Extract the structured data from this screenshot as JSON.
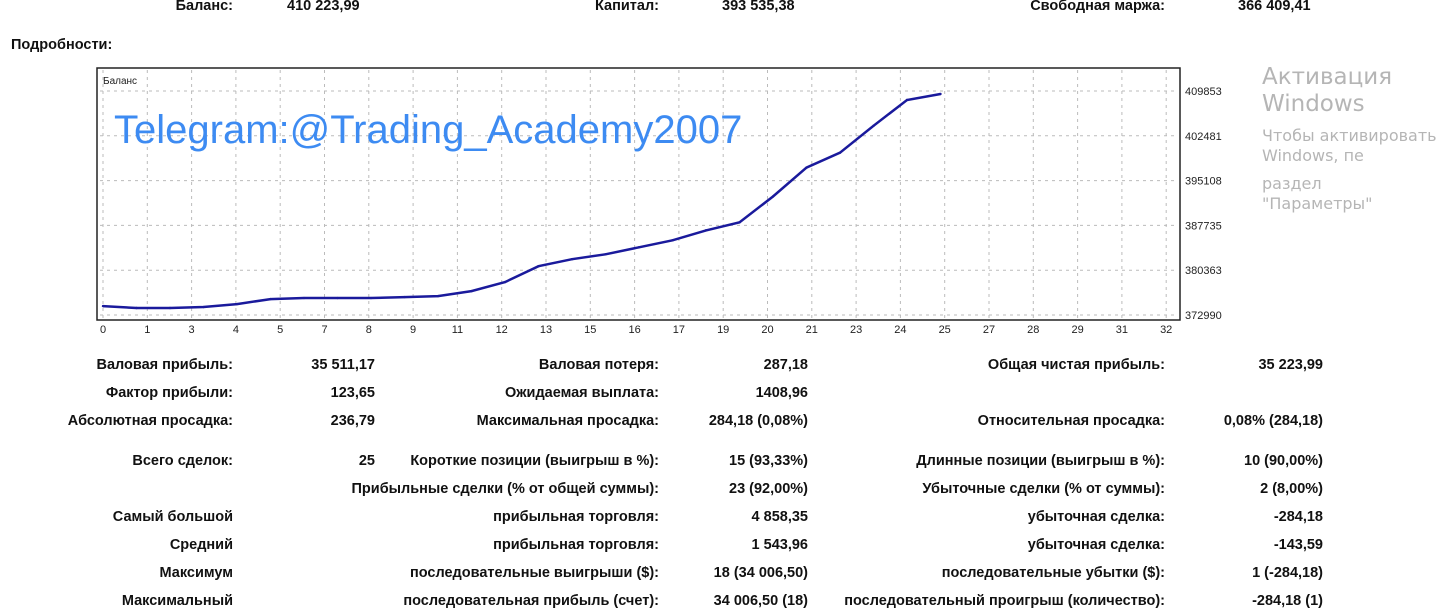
{
  "summary": [
    {
      "label": "Баланс:",
      "value": "410 223,99"
    },
    {
      "label": "Капитал:",
      "value": "393 535,38"
    },
    {
      "label": "Свободная маржа:",
      "value": "366 409,41"
    }
  ],
  "details_title": "Подробности:",
  "watermark_telegram": "Telegram:@Trading_Academy2007",
  "windows_activation": {
    "line1": "Активация Windows",
    "line2": "Чтобы активировать Windows, пе",
    "line3": "раздел \"Параметры\""
  },
  "chart_data": {
    "type": "line",
    "title": "Баланс",
    "x_tick_labels": [
      "0",
      "1",
      "3",
      "4",
      "5",
      "7",
      "8",
      "9",
      "11",
      "12",
      "13",
      "15",
      "16",
      "17",
      "19",
      "20",
      "21",
      "23",
      "24",
      "25",
      "27",
      "28",
      "29",
      "31",
      "32"
    ],
    "y_tick_labels": [
      "409853",
      "402481",
      "395108",
      "387735",
      "380363",
      "372990"
    ],
    "ylim": [
      372990,
      409853
    ],
    "xlim": [
      0,
      32
    ],
    "grid": true,
    "line_color": "#1a1a9c",
    "series": [
      {
        "x": [
          0,
          1,
          2,
          3,
          4,
          5,
          6,
          7,
          8,
          9,
          10,
          11,
          12,
          13,
          14,
          15,
          16,
          17,
          18,
          19,
          20,
          21,
          22,
          23,
          24,
          25
        ],
        "values": [
          374460,
          374140,
          374140,
          374300,
          374790,
          375610,
          375780,
          375780,
          375780,
          375940,
          376100,
          376920,
          378400,
          381020,
          382170,
          382980,
          384130,
          385280,
          386920,
          388230,
          392490,
          397240,
          399700,
          404120,
          408380,
          409360
        ]
      }
    ]
  },
  "stats": [
    {
      "l1": "Валовая прибыль:",
      "v1": "35 511,17",
      "l2": "Валовая потеря:",
      "v2": "287,18",
      "l3": "Общая чистая прибыль:",
      "v3": "35 223,99"
    },
    {
      "l1": "Фактор прибыли:",
      "v1": "123,65",
      "l2": "Ожидаемая выплата:",
      "v2": "1408,96",
      "l3": "",
      "v3": ""
    },
    {
      "l1": "Абсолютная просадка:",
      "v1": "236,79",
      "l2": "Максимальная просадка:",
      "v2": "284,18 (0,08%)",
      "l3": "Относительная просадка:",
      "v3": "0,08% (284,18)"
    },
    {
      "l1": "Всего сделок:",
      "v1": "25",
      "l2": "Короткие позиции (выигрыш в %):",
      "v2": "15 (93,33%)",
      "l3": "Длинные позиции (выигрыш в %):",
      "v3": "10 (90,00%)"
    },
    {
      "l1": "",
      "v1": "",
      "l2": "Прибыльные сделки (% от общей суммы):",
      "v2": "23 (92,00%)",
      "l3": "Убыточные сделки (% от суммы):",
      "v3": "2 (8,00%)"
    },
    {
      "l1": "Самый большой",
      "v1": "",
      "l2": "прибыльная торговля:",
      "v2": "4 858,35",
      "l3": "убыточная сделка:",
      "v3": "-284,18"
    },
    {
      "l1": "Средний",
      "v1": "",
      "l2": "прибыльная торговля:",
      "v2": "1 543,96",
      "l3": "убыточная сделка:",
      "v3": "-143,59"
    },
    {
      "l1": "Максимум",
      "v1": "",
      "l2": "последовательные выигрыши ($):",
      "v2": "18 (34 006,50)",
      "l3": "последовательные убытки ($):",
      "v3": "1 (-284,18)"
    },
    {
      "l1": "Максимальный",
      "v1": "",
      "l2": "последовательная прибыль (счет):",
      "v2": "34 006,50 (18)",
      "l3": "последовательный проигрыш (количество):",
      "v3": "-284,18 (1)"
    }
  ]
}
